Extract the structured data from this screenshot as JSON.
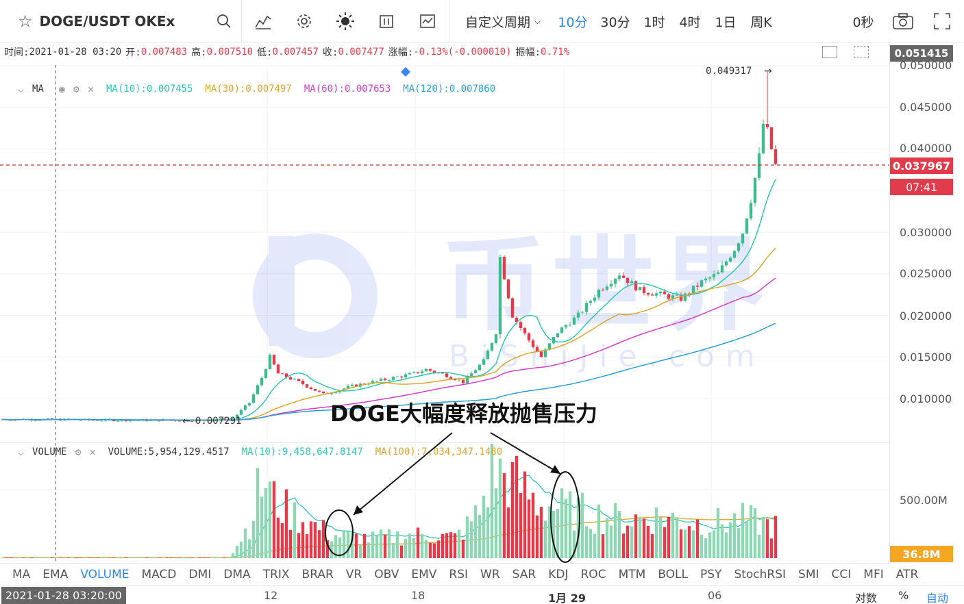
{
  "toolbar": {
    "symbol": "DOGE/USDT OKEx",
    "period_dropdown": "自定义周期",
    "periods": [
      "10分",
      "30分",
      "1时",
      "4时",
      "1日",
      "周K"
    ],
    "active_period": "10分",
    "countdown": "0秒"
  },
  "info_bar": {
    "time_label": "时间:",
    "time": "2021-01-28 03:20",
    "open_label": "开:",
    "open": "0.007483",
    "high_label": "高:",
    "high": "0.007510",
    "low_label": "低:",
    "low": "0.007457",
    "close_label": "收:",
    "close": "0.007477",
    "change_label": "涨幅:",
    "change": "-0.13%(-0.000010)",
    "amp_label": "振幅:",
    "amp": "0.71%"
  },
  "ma_legend": {
    "title": "MA",
    "ma10": "MA(10):0.007455",
    "ma30": "MA(30):0.007497",
    "ma60": "MA(60):0.007653",
    "ma120": "MA(120):0.007860"
  },
  "vol_legend": {
    "title": "VOLUME",
    "volume": "VOLUME:5,954,129.4517",
    "ma10": "MA(10):9,458,647.8147",
    "ma100": "MA(100):7,034,347.1480"
  },
  "watermark": {
    "cn": "币世界",
    "en": "BiShiJie.com"
  },
  "annotation": {
    "text": "DOGE大幅度释放抛售压力"
  },
  "markers": {
    "high": "0.049317",
    "low": "0.007291"
  },
  "price_axis": {
    "top_tag": "0.051415",
    "current_price": "0.037967",
    "countdown": "07:41",
    "labels": [
      "0.050000",
      "0.045000",
      "0.040000",
      "0.035000",
      "0.030000",
      "0.025000",
      "0.020000",
      "0.015000",
      "0.010000"
    ],
    "vol_label": "500.00M",
    "vol_tag": "36.8M"
  },
  "indicator_tabs": [
    "MA",
    "EMA",
    "VOLUME",
    "MACD",
    "DMI",
    "DMA",
    "TRIX",
    "BRAR",
    "VR",
    "OBV",
    "EMV",
    "RSI",
    "WR",
    "SAR",
    "KDJ",
    "ROC",
    "MTM",
    "BOLL",
    "PSY",
    "StochRSI",
    "SMI",
    "CCI",
    "MFI",
    "ATR"
  ],
  "active_indicator": "VOLUME",
  "time_axis": {
    "crosshair": "2021-01-28 03:20:00",
    "ticks": [
      "12",
      "18",
      "1月 29",
      "06"
    ],
    "right": [
      "对数",
      "%",
      "自动"
    ]
  },
  "colors": {
    "up": "#3dbb8e",
    "down": "#e03c4b",
    "ma10": "#2fc5b3",
    "ma30": "#d9a62e",
    "ma60": "#d23ec8",
    "ma120": "#2a9fd0",
    "accent": "#2f86e6"
  },
  "chart_data": {
    "type": "candlestick",
    "symbol": "DOGE/USDT",
    "interval": "10分",
    "ylim": [
      0.005,
      0.052
    ],
    "price_path": [
      [
        0,
        0.0075
      ],
      [
        10,
        0.0075
      ],
      [
        25,
        0.0074
      ],
      [
        40,
        0.0074
      ],
      [
        50,
        0.0074
      ],
      [
        56,
        0.0076
      ],
      [
        60,
        0.0095
      ],
      [
        63,
        0.0125
      ],
      [
        65,
        0.015
      ],
      [
        67,
        0.013
      ],
      [
        72,
        0.012
      ],
      [
        78,
        0.0105
      ],
      [
        85,
        0.0115
      ],
      [
        95,
        0.0125
      ],
      [
        100,
        0.013
      ],
      [
        103,
        0.0135
      ],
      [
        108,
        0.0128
      ],
      [
        112,
        0.012
      ],
      [
        117,
        0.0145
      ],
      [
        120,
        0.018
      ],
      [
        121,
        0.027
      ],
      [
        124,
        0.02
      ],
      [
        128,
        0.017
      ],
      [
        131,
        0.015
      ],
      [
        135,
        0.018
      ],
      [
        140,
        0.02
      ],
      [
        145,
        0.023
      ],
      [
        150,
        0.025
      ],
      [
        155,
        0.023
      ],
      [
        165,
        0.022
      ],
      [
        170,
        0.024
      ],
      [
        174,
        0.025
      ],
      [
        178,
        0.028
      ],
      [
        180,
        0.03
      ],
      [
        182,
        0.034
      ],
      [
        184,
        0.039
      ],
      [
        185,
        0.043
      ],
      [
        186,
        0.042
      ],
      [
        187,
        0.04
      ],
      [
        188,
        0.038
      ]
    ],
    "high_marker": 0.049317,
    "low_marker": 0.007291,
    "current_price": 0.037967,
    "ma_end_values": {
      "MA10": 0.0345,
      "MA30": 0.0273,
      "MA60": 0.0237,
      "MA120": 0.0181
    },
    "volume_ylim": [
      0,
      700
    ],
    "volume_unit": "M",
    "volume_path": [
      [
        0,
        3
      ],
      [
        55,
        3
      ],
      [
        57,
        100
      ],
      [
        60,
        250
      ],
      [
        62,
        470
      ],
      [
        64,
        560
      ],
      [
        66,
        420
      ],
      [
        70,
        330
      ],
      [
        72,
        300
      ],
      [
        75,
        250
      ],
      [
        80,
        170
      ],
      [
        90,
        140
      ],
      [
        100,
        170
      ],
      [
        110,
        150
      ],
      [
        113,
        230
      ],
      [
        116,
        340
      ],
      [
        118,
        520
      ],
      [
        119,
        640
      ],
      [
        122,
        600
      ],
      [
        126,
        520
      ],
      [
        130,
        400
      ],
      [
        140,
        340
      ],
      [
        150,
        280
      ],
      [
        160,
        300
      ],
      [
        170,
        250
      ],
      [
        175,
        260
      ],
      [
        180,
        280
      ],
      [
        184,
        260
      ],
      [
        188,
        230
      ]
    ]
  }
}
